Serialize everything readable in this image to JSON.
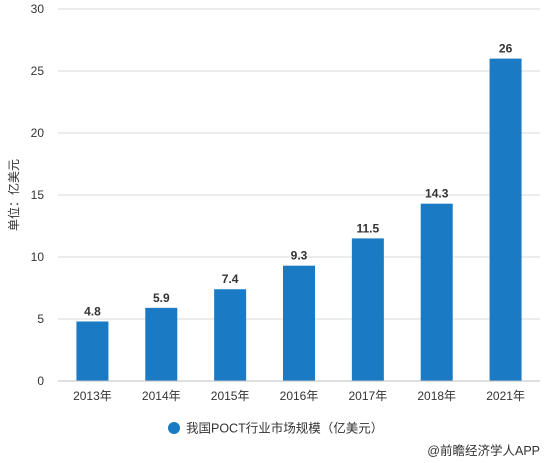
{
  "chart_data": {
    "type": "bar",
    "categories": [
      "2013年",
      "2014年",
      "2015年",
      "2016年",
      "2017年",
      "2018年",
      "2021年"
    ],
    "series": [
      {
        "name": "我国POCT行业市场规模（亿美元）",
        "values": [
          4.8,
          5.9,
          7.4,
          9.3,
          11.5,
          14.3,
          26
        ],
        "color": "#1a7ac4"
      }
    ],
    "data_labels": [
      "4.8",
      "5.9",
      "7.4",
      "9.3",
      "11.5",
      "14.3",
      "26"
    ],
    "ylabel": "单位：亿美元",
    "ylim": [
      0,
      30
    ],
    "yticks": [
      0,
      5,
      10,
      15,
      20,
      25,
      30
    ],
    "grid": true,
    "legend_position": "bottom-center"
  },
  "source_text": "@前瞻经济学人APP",
  "colors": {
    "bar": "#1a7ac4",
    "grid": "#d9d9d9",
    "axis": "#bfbfbf",
    "text": "#333333"
  }
}
